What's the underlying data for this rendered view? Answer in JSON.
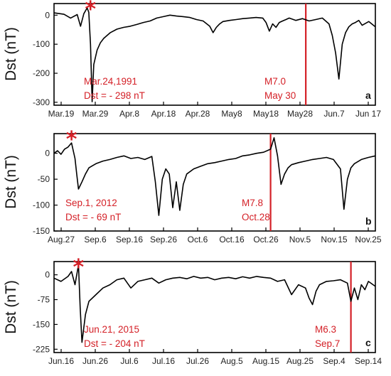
{
  "colors": {
    "annotation": "#d42027",
    "line": "#000000",
    "axis": "#000000"
  },
  "chart_data": [
    {
      "type": "line",
      "panel_label": "a",
      "ylabel": "Dst (nT)",
      "ylim": [
        -310,
        40
      ],
      "yticks": [
        0,
        -100,
        -200,
        -300
      ],
      "ytick_labels": [
        "0",
        "-100",
        "-200",
        "-300"
      ],
      "x_ticks": [
        "Mar.19",
        "Mar.29",
        "Apr.8",
        "Apr.18",
        "Apr.28",
        "May8",
        "May18",
        "May28",
        "Jun.7",
        "Jun 17"
      ],
      "xlim": [
        -3,
        94
      ],
      "storm_marker_day": 8,
      "event_label": "Mar.24,1991",
      "event_value_label": "Dst = - 298 nT",
      "quake_day": 73,
      "quake_label_1": "M7.0",
      "quake_label_2": "May 30",
      "series": [
        {
          "x": [
            -3,
            0,
            2,
            4,
            5,
            6,
            7,
            7.5,
            8,
            8.5,
            9,
            10,
            11,
            12,
            14,
            16,
            18,
            20,
            22,
            24,
            26,
            28,
            30,
            32,
            34,
            36,
            38,
            40,
            42,
            44,
            45,
            46,
            47,
            48,
            50,
            52,
            54,
            56,
            58,
            60,
            61,
            62,
            63,
            64,
            65,
            66,
            67,
            68,
            70,
            72,
            74,
            76,
            78,
            80,
            81,
            82,
            83,
            84,
            85,
            86,
            87,
            88,
            89,
            90,
            92,
            94
          ],
          "values": [
            8,
            3,
            -10,
            2,
            -38,
            5,
            25,
            10,
            -100,
            -298,
            -170,
            -120,
            -95,
            -80,
            -60,
            -48,
            -42,
            -38,
            -32,
            -25,
            -20,
            -10,
            -5,
            0,
            -3,
            -5,
            -8,
            -15,
            -20,
            -38,
            -60,
            -42,
            -30,
            -22,
            -18,
            -15,
            -12,
            -10,
            -8,
            -10,
            -25,
            -55,
            -30,
            -42,
            -25,
            -20,
            -15,
            -10,
            -18,
            -12,
            -20,
            -15,
            -10,
            -30,
            -70,
            -130,
            -220,
            -100,
            -60,
            -40,
            -30,
            -25,
            -18,
            -35,
            -22,
            -40
          ]
        }
      ]
    },
    {
      "type": "line",
      "panel_label": "b",
      "ylabel": "Dst (nT)",
      "ylim": [
        -150,
        38
      ],
      "yticks": [
        0,
        -50,
        -100,
        -150
      ],
      "ytick_labels": [
        "0",
        "-50",
        "-100",
        "-150"
      ],
      "x_ticks": [
        "Aug.27",
        "Sep.6",
        "Sep.16",
        "Sep.26",
        "Oct.6",
        "Oct.16",
        "Oct.26",
        "Nov.5",
        "Nov.15",
        "Nov.25"
      ],
      "xlim": [
        0,
        92
      ],
      "storm_marker_day": 5,
      "event_label": "Sep.1, 2012",
      "event_value_label": "Dst = - 69 nT",
      "quake_day": 62,
      "quake_label_1": "M7.8",
      "quake_label_2": "Oct.28",
      "series": [
        {
          "x": [
            0,
            1,
            2,
            3,
            4,
            5,
            6,
            6.5,
            7,
            8,
            9,
            10,
            12,
            14,
            16,
            18,
            20,
            22,
            24,
            26,
            28,
            29,
            30,
            31,
            32,
            33,
            34,
            35,
            36,
            37,
            38,
            40,
            42,
            44,
            46,
            48,
            50,
            52,
            54,
            56,
            58,
            60,
            62,
            63,
            64,
            65,
            66,
            67,
            68,
            70,
            72,
            74,
            76,
            78,
            80,
            82,
            83,
            84,
            85,
            86,
            88,
            90,
            92
          ],
          "values": [
            0,
            5,
            -2,
            8,
            12,
            20,
            -10,
            -40,
            -69,
            -55,
            -40,
            -28,
            -20,
            -15,
            -12,
            -8,
            -5,
            -10,
            -8,
            -12,
            -6,
            -55,
            -120,
            -50,
            -30,
            -40,
            -105,
            -55,
            -110,
            -60,
            -40,
            -30,
            -25,
            -20,
            -18,
            -15,
            -12,
            -10,
            -5,
            -3,
            0,
            2,
            8,
            30,
            -5,
            -60,
            -40,
            -28,
            -22,
            -18,
            -15,
            -12,
            -10,
            -8,
            -12,
            -30,
            -108,
            -50,
            -28,
            -20,
            -12,
            -8,
            -5
          ]
        }
      ]
    },
    {
      "type": "line",
      "panel_label": "c",
      "ylabel": "Dst (nT)",
      "ylim": [
        -235,
        40
      ],
      "yticks": [
        0,
        -75,
        -150,
        -225
      ],
      "ytick_labels": [
        "0",
        "-75",
        "-150",
        "-225"
      ],
      "x_ticks": [
        "Jun.16",
        "Jun.26",
        "Jul.6",
        "Jul.16",
        "Jul.26",
        "Aug.5",
        "Aug.15",
        "Aug.25",
        "Sep.4",
        "Sep.14"
      ],
      "xlim": [
        -2,
        90
      ],
      "storm_marker_day": 5,
      "event_label": "Jun.21, 2015",
      "event_value_label": "Dst = - 204 nT",
      "quake_day": 83,
      "quake_label_1": "M6.3",
      "quake_label_2": "Sep.7",
      "series": [
        {
          "x": [
            -2,
            0,
            2,
            3,
            4,
            5,
            5.5,
            6,
            7,
            8,
            10,
            12,
            14,
            16,
            18,
            20,
            22,
            24,
            26,
            28,
            30,
            32,
            34,
            36,
            38,
            40,
            42,
            44,
            46,
            48,
            50,
            52,
            54,
            56,
            58,
            60,
            62,
            64,
            66,
            68,
            70,
            71,
            72,
            73,
            74,
            76,
            78,
            80,
            82,
            83,
            84,
            85,
            86,
            87,
            88,
            90
          ],
          "values": [
            -10,
            -20,
            -5,
            10,
            -30,
            30,
            -100,
            -204,
            -120,
            -80,
            -60,
            -40,
            -30,
            -15,
            -10,
            -40,
            -20,
            -15,
            -10,
            -25,
            -15,
            -10,
            -8,
            -12,
            -5,
            -10,
            -8,
            -15,
            -10,
            -8,
            -12,
            -6,
            -10,
            -5,
            -8,
            -10,
            -20,
            -15,
            -60,
            -30,
            -40,
            -70,
            -90,
            -50,
            -30,
            -20,
            -18,
            -15,
            -25,
            -80,
            -40,
            -75,
            -30,
            -45,
            -20,
            -35
          ]
        }
      ]
    }
  ]
}
